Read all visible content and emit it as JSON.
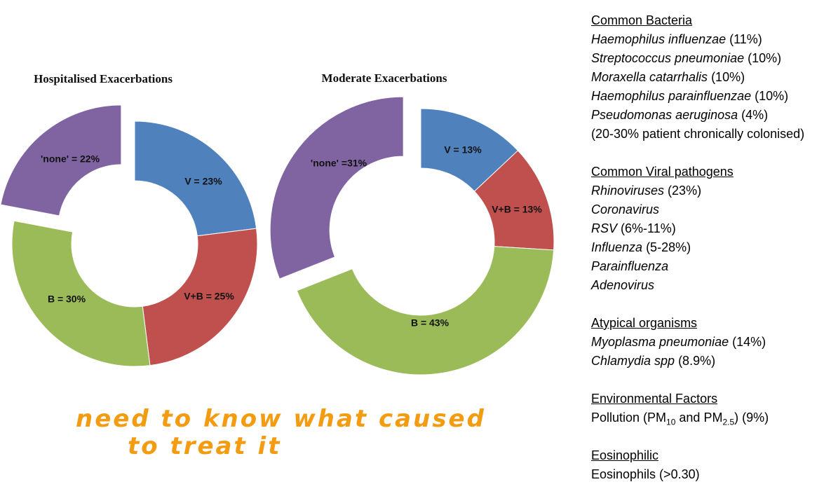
{
  "chart_data": [
    {
      "type": "pie",
      "variant": "donut",
      "title": "Hospitalised Exacerbations",
      "categories": [
        "V",
        "V+B",
        "B",
        "'none'"
      ],
      "values": [
        23,
        25,
        30,
        22
      ],
      "labels": [
        "V = 23%",
        "V+B = 25%",
        "B = 30%",
        "'none' = 22%"
      ],
      "colors": [
        "#4f81bd",
        "#c0504d",
        "#9bbb59",
        "#8064a2"
      ],
      "exploded": [
        "'none'"
      ]
    },
    {
      "type": "pie",
      "variant": "donut",
      "title": "Moderate Exacerbations",
      "categories": [
        "V",
        "V+B",
        "B",
        "'none'"
      ],
      "values": [
        13,
        13,
        43,
        31
      ],
      "labels": [
        "V = 13%",
        "V+B = 13%",
        "B = 43%",
        "'none' =31%"
      ],
      "colors": [
        "#4f81bd",
        "#c0504d",
        "#9bbb59",
        "#8064a2"
      ],
      "exploded": [
        "'none'"
      ]
    }
  ],
  "handwritten_note": {
    "line1": "need to know what caused",
    "line2": "to treat it",
    "color": "#f39c12"
  },
  "sections": {
    "bacteria": {
      "heading": "Common Bacteria",
      "items": [
        {
          "name": "Haemophilus influenzae",
          "detail": " (11%)"
        },
        {
          "name": "Streptococcus pneumoniae",
          "detail": " (10%)"
        },
        {
          "name": "Moraxella catarrhalis",
          "detail": " (10%)"
        },
        {
          "name": "Haemophilus parainfluenzae",
          "detail": " (10%)"
        },
        {
          "name": "Pseudomonas aeruginosa",
          "detail": " (4%)"
        }
      ],
      "note": "(20-30% patient chronically colonised)"
    },
    "viral": {
      "heading": "Common Viral pathogens",
      "items": [
        {
          "name": "Rhinoviruses",
          "detail": " (23%)"
        },
        {
          "name": "Coronavirus",
          "detail": ""
        },
        {
          "name": "RSV",
          "detail": " (6%-11%)"
        },
        {
          "name": "Influenza",
          "detail": " (5-28%)"
        },
        {
          "name": "Parainfluenza",
          "detail": ""
        },
        {
          "name": "Adenovirus",
          "detail": ""
        }
      ]
    },
    "atypical": {
      "heading": "Atypical organisms",
      "items": [
        {
          "name": "Myoplasma pneumoniae",
          "detail": " (14%)"
        },
        {
          "name": "Chlamydia spp",
          "detail": " (8.9%)"
        }
      ]
    },
    "environment": {
      "heading": "Environmental Factors",
      "pollution_prefix": "Pollution (PM",
      "pm10_sub": "10",
      "pollution_and": " and PM",
      "pm25_sub": "2.5",
      "pollution_suffix": ") (9%)"
    },
    "eosinophilic": {
      "heading": "Eosinophilic",
      "item": "Eosinophils (>0.30)"
    }
  }
}
